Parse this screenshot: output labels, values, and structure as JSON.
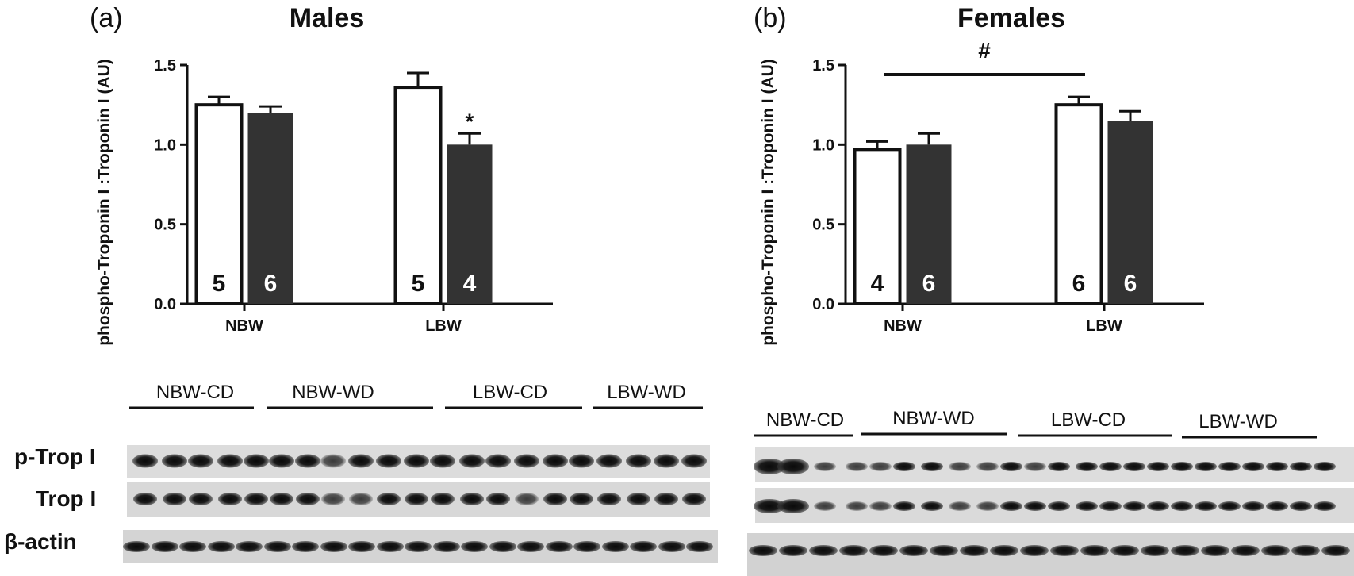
{
  "chart_data": [
    {
      "type": "bar",
      "panel_label": "(a)",
      "title": "Males",
      "ylabel": "phospho-Troponin I :Troponin I (AU)",
      "xlabel": "",
      "ylim": [
        0,
        1.5
      ],
      "yticks": [
        "0.0",
        "0.5",
        "1.0",
        "1.5"
      ],
      "categories": [
        "NBW",
        "LBW"
      ],
      "series": [
        {
          "fill": "white",
          "color": "#ffffff",
          "values": [
            1.25,
            1.36
          ],
          "errors": [
            0.05,
            0.09
          ],
          "n": [
            "5",
            "5"
          ]
        },
        {
          "fill": "dark",
          "color": "#333333",
          "values": [
            1.2,
            1.0
          ],
          "errors": [
            0.04,
            0.07
          ],
          "n": [
            "6",
            "4"
          ]
        }
      ],
      "annotations": [
        {
          "text": "*",
          "category": "LBW",
          "series": 1
        }
      ],
      "legend": "none",
      "grid": false
    },
    {
      "type": "bar",
      "panel_label": "(b)",
      "title": "Females",
      "ylabel": "phospho-Troponin I :Troponin I (AU)",
      "xlabel": "",
      "ylim": [
        0,
        1.5
      ],
      "yticks": [
        "0.0",
        "0.5",
        "1.0",
        "1.5"
      ],
      "categories": [
        "NBW",
        "LBW"
      ],
      "series": [
        {
          "fill": "white",
          "color": "#ffffff",
          "values": [
            0.97,
            1.25
          ],
          "errors": [
            0.05,
            0.05
          ],
          "n": [
            "4",
            "6"
          ]
        },
        {
          "fill": "dark",
          "color": "#333333",
          "values": [
            1.0,
            1.15
          ],
          "errors": [
            0.07,
            0.06
          ],
          "n": [
            "6",
            "6"
          ]
        }
      ],
      "annotations": [
        {
          "text": "#",
          "type": "bracket",
          "from": "NBW",
          "to": "LBW"
        }
      ],
      "legend": "none",
      "grid": false
    }
  ],
  "blots": {
    "left": {
      "groups": [
        "NBW-CD",
        "NBW-WD",
        "LBW-CD",
        "LBW-WD"
      ],
      "rows": [
        "p-Trop I",
        "Trop I",
        "β-actin"
      ]
    },
    "right": {
      "groups": [
        "NBW-CD",
        "NBW-WD",
        "LBW-CD",
        "LBW-WD"
      ]
    }
  }
}
